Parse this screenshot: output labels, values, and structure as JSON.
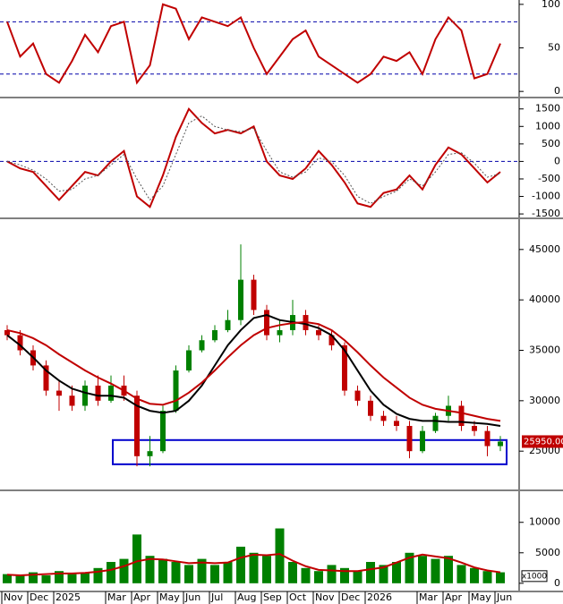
{
  "chart_data": [
    {
      "type": "line",
      "ylim": [
        -6,
        105
      ],
      "yticks": [
        0,
        50,
        100
      ],
      "reference_lines": [
        20,
        80
      ],
      "ref_color": "#0000aa",
      "series": [
        {
          "color": "#c00000",
          "values": [
            80,
            40,
            55,
            20,
            10,
            35,
            65,
            45,
            75,
            80,
            10,
            30,
            100,
            95,
            60,
            85,
            80,
            75,
            85,
            50,
            20,
            40,
            60,
            70,
            40,
            30,
            20,
            10,
            20,
            40,
            35,
            45,
            20,
            60,
            85,
            70,
            15,
            20,
            55
          ]
        }
      ]
    },
    {
      "type": "line",
      "ylim": [
        -1600,
        1800
      ],
      "yticks": [
        -1500,
        -1000,
        -500,
        0,
        500,
        1000,
        1500
      ],
      "reference_lines": [
        0
      ],
      "ref_color": "#0000aa",
      "series": [
        {
          "color": "#c00000",
          "values": [
            0,
            -200,
            -300,
            -700,
            -1100,
            -700,
            -300,
            -400,
            0,
            300,
            -1000,
            -1300,
            -400,
            700,
            1500,
            1100,
            800,
            900,
            800,
            1000,
            0,
            -400,
            -500,
            -200,
            300,
            -100,
            -600,
            -1200,
            -1300,
            -900,
            -800,
            -400,
            -800,
            -100,
            400,
            200,
            -200,
            -600,
            -300
          ]
        },
        {
          "color": "#555555",
          "dashed": true,
          "values": [
            0,
            -100,
            -250,
            -500,
            -850,
            -800,
            -500,
            -400,
            -100,
            200,
            -500,
            -1100,
            -700,
            200,
            1100,
            1300,
            1000,
            900,
            850,
            950,
            300,
            -300,
            -450,
            -300,
            100,
            0,
            -400,
            -1000,
            -1200,
            -1000,
            -850,
            -500,
            -700,
            -300,
            200,
            250,
            -50,
            -450,
            -350
          ]
        }
      ]
    },
    {
      "type": "candlestick",
      "ylim": [
        21200,
        48000
      ],
      "yticks": [
        25000,
        30000,
        35000,
        40000,
        45000
      ],
      "up_color": "#008000",
      "down_color": "#c00000",
      "open": [
        37000,
        36500,
        35000,
        33500,
        31000,
        30500,
        29500,
        31500,
        30000,
        31500,
        30500,
        24500,
        25000,
        29000,
        33000,
        35000,
        36000,
        37000,
        38000,
        42000,
        39000,
        36500,
        37000,
        38500,
        37000,
        36500,
        35500,
        31000,
        30000,
        28500,
        28000,
        27500,
        25000,
        27000,
        28500,
        29500,
        27500,
        27000,
        25500
      ],
      "high": [
        37500,
        37000,
        35500,
        34000,
        32000,
        31500,
        32000,
        32500,
        32500,
        32500,
        31000,
        26500,
        29500,
        33500,
        35500,
        36500,
        37500,
        39000,
        45500,
        42500,
        39500,
        38000,
        40000,
        39000,
        37500,
        37000,
        35800,
        31500,
        30500,
        29000,
        28500,
        28000,
        27500,
        28800,
        30500,
        30000,
        28000,
        27500,
        26500
      ],
      "low": [
        36000,
        34500,
        33000,
        30500,
        29000,
        29000,
        29000,
        29500,
        29800,
        30000,
        23500,
        23500,
        24800,
        28800,
        32800,
        34800,
        35800,
        36800,
        37500,
        38500,
        36000,
        35800,
        36500,
        36500,
        36000,
        35000,
        30500,
        29500,
        28000,
        27500,
        27000,
        24300,
        24800,
        26800,
        28000,
        27000,
        26500,
        24500,
        25000
      ],
      "close": [
        36500,
        35000,
        33500,
        31000,
        30500,
        29500,
        31500,
        30000,
        31500,
        30500,
        24500,
        25000,
        29000,
        33000,
        35000,
        36000,
        37000,
        38000,
        42000,
        39000,
        36500,
        37000,
        38500,
        37000,
        36500,
        35500,
        31000,
        30000,
        28500,
        28000,
        27500,
        25000,
        27000,
        28500,
        29500,
        27500,
        27000,
        25500,
        25950
      ],
      "last_value_label": "25950.00",
      "series": [
        {
          "color": "#000000",
          "values": [
            36500,
            35500,
            34300,
            33000,
            32000,
            31200,
            30800,
            30500,
            30500,
            30300,
            29500,
            29000,
            28800,
            29000,
            30000,
            31500,
            33500,
            35500,
            37000,
            38200,
            38500,
            38000,
            37800,
            37600,
            37200,
            36500,
            35000,
            33000,
            31000,
            29600,
            28700,
            28200,
            28000,
            28000,
            27900,
            27900,
            27800,
            27700,
            27500
          ]
        },
        {
          "color": "#c00000",
          "values": [
            37000,
            36700,
            36200,
            35500,
            34600,
            33800,
            33000,
            32300,
            31700,
            31000,
            30200,
            29700,
            29600,
            30000,
            30800,
            31800,
            33000,
            34300,
            35500,
            36500,
            37200,
            37500,
            37700,
            37800,
            37600,
            37000,
            36000,
            34800,
            33500,
            32300,
            31300,
            30300,
            29600,
            29200,
            29000,
            28800,
            28500,
            28200,
            28000
          ]
        }
      ],
      "highlight_ylim": [
        23700,
        26100
      ],
      "highlight_color": "#0000cc"
    },
    {
      "type": "bar",
      "ylim": [
        -1200,
        15100
      ],
      "yticks": [
        0,
        5000,
        10000
      ],
      "unit_label": "x1000",
      "color": "#008000",
      "categories": [
        "Nov",
        null,
        "Dec",
        null,
        "2025",
        null,
        null,
        null,
        "Mar",
        null,
        "Apr",
        null,
        "May",
        null,
        "Jun",
        null,
        "Jul",
        null,
        "Aug",
        null,
        "Sep",
        null,
        "Oct",
        null,
        "Nov",
        null,
        "Dec",
        null,
        "2026",
        null,
        null,
        null,
        "Mar",
        null,
        "Apr",
        null,
        "May",
        null,
        "Jun"
      ],
      "values": [
        1500,
        1200,
        1800,
        1300,
        2000,
        1500,
        1800,
        2500,
        3500,
        4000,
        8000,
        4500,
        4000,
        3500,
        3000,
        4000,
        3000,
        3500,
        6000,
        5000,
        4500,
        9000,
        3500,
        2500,
        2000,
        3000,
        2500,
        2000,
        3500,
        3000,
        3500,
        5000,
        4500,
        4000,
        4500,
        3000,
        2500,
        2000,
        1800
      ],
      "series": [
        {
          "color": "#c00000",
          "values": [
            1400,
            1300,
            1400,
            1500,
            1600,
            1600,
            1700,
            1900,
            2200,
            2800,
            3600,
            4000,
            3900,
            3600,
            3300,
            3400,
            3300,
            3400,
            4200,
            4700,
            4600,
            4800,
            3700,
            2800,
            2200,
            2100,
            2000,
            2000,
            2300,
            2600,
            3400,
            4200,
            4700,
            4400,
            4100,
            3400,
            2600,
            2100,
            1800
          ]
        }
      ]
    }
  ]
}
